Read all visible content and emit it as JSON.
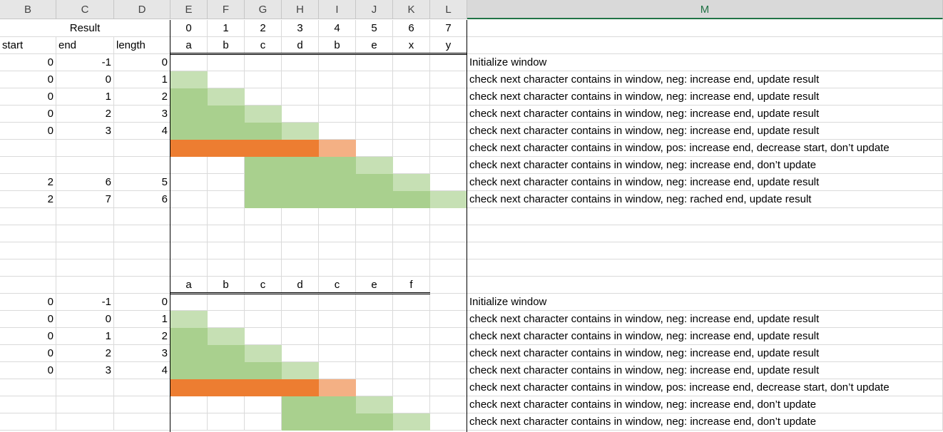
{
  "columns": [
    "B",
    "C",
    "D",
    "E",
    "F",
    "G",
    "H",
    "I",
    "J",
    "K",
    "L",
    "M"
  ],
  "selected_column": "M",
  "result_label": "Result",
  "index_row": [
    "0",
    "1",
    "2",
    "3",
    "4",
    "5",
    "6",
    "7"
  ],
  "row_labels": {
    "start": "start",
    "end": "end",
    "length": "length"
  },
  "string1": [
    "a",
    "b",
    "c",
    "d",
    "b",
    "e",
    "x",
    "y"
  ],
  "table1": [
    {
      "start": "0",
      "end": "-1",
      "length": "0",
      "note": "Initialize window",
      "fills": []
    },
    {
      "start": "0",
      "end": "0",
      "length": "1",
      "note": "check next character contains in window, neg: increase end, update result",
      "fills": [
        "L",
        "",
        "",
        "",
        "",
        "",
        "",
        ""
      ]
    },
    {
      "start": "0",
      "end": "1",
      "length": "2",
      "note": "check next character contains in window, neg: increase end, update result",
      "fills": [
        "G",
        "L",
        "",
        "",
        "",
        "",
        "",
        ""
      ]
    },
    {
      "start": "0",
      "end": "2",
      "length": "3",
      "note": "check next character contains in window, neg: increase end, update result",
      "fills": [
        "G",
        "G",
        "L",
        "",
        "",
        "",
        "",
        ""
      ]
    },
    {
      "start": "0",
      "end": "3",
      "length": "4",
      "note": "check next character contains in window, neg: increase end, update result",
      "fills": [
        "G",
        "G",
        "G",
        "L",
        "",
        "",
        "",
        ""
      ]
    },
    {
      "start": "",
      "end": "",
      "length": "",
      "note": "check next character contains in window, pos: increase end, decrease start, don’t update",
      "fills": [
        "O",
        "O",
        "O",
        "O",
        "P",
        "",
        "",
        ""
      ]
    },
    {
      "start": "",
      "end": "",
      "length": "",
      "note": "check next character contains in window, neg: increase end, don’t update",
      "fills": [
        "",
        "",
        "G",
        "G",
        "G",
        "L",
        "",
        ""
      ]
    },
    {
      "start": "2",
      "end": "6",
      "length": "5",
      "note": "check next character contains in window, neg: increase end, update result",
      "fills": [
        "",
        "",
        "G",
        "G",
        "G",
        "G",
        "L",
        ""
      ]
    },
    {
      "start": "2",
      "end": "7",
      "length": "6",
      "note": "check next character contains in window, neg: rached end, update result",
      "fills": [
        "",
        "",
        "G",
        "G",
        "G",
        "G",
        "G",
        "L"
      ]
    }
  ],
  "string2": [
    "a",
    "b",
    "c",
    "d",
    "c",
    "e",
    "f"
  ],
  "table2": [
    {
      "start": "0",
      "end": "-1",
      "length": "0",
      "note": "Initialize window",
      "fills": []
    },
    {
      "start": "0",
      "end": "0",
      "length": "1",
      "note": "check next character contains in window, neg: increase end, update result",
      "fills": [
        "L",
        "",
        "",
        "",
        "",
        "",
        "",
        ""
      ]
    },
    {
      "start": "0",
      "end": "1",
      "length": "2",
      "note": "check next character contains in window, neg: increase end, update result",
      "fills": [
        "G",
        "L",
        "",
        "",
        "",
        "",
        "",
        ""
      ]
    },
    {
      "start": "0",
      "end": "2",
      "length": "3",
      "note": "check next character contains in window, neg: increase end, update result",
      "fills": [
        "G",
        "G",
        "L",
        "",
        "",
        "",
        "",
        ""
      ]
    },
    {
      "start": "0",
      "end": "3",
      "length": "4",
      "note": "check next character contains in window, neg: increase end, update result",
      "fills": [
        "G",
        "G",
        "G",
        "L",
        "",
        "",
        "",
        ""
      ]
    },
    {
      "start": "",
      "end": "",
      "length": "",
      "note": "check next character contains in window, pos: increase end, decrease start, don’t update",
      "fills": [
        "O",
        "O",
        "O",
        "O",
        "P",
        "",
        "",
        ""
      ]
    },
    {
      "start": "",
      "end": "",
      "length": "",
      "note": "check next character contains in window, neg: increase end, don’t update",
      "fills": [
        "",
        "",
        "",
        "G",
        "G",
        "L",
        "",
        ""
      ]
    },
    {
      "start": "",
      "end": "",
      "length": "",
      "note": "check next character contains in window, neg: increase end, don’t update",
      "fills": [
        "",
        "",
        "",
        "G",
        "G",
        "G",
        "L",
        ""
      ]
    }
  ],
  "colors": {
    "L": "#c6e0b4",
    "G": "#a9d08e",
    "O": "#ed7d31",
    "P": "#f4b084",
    "header_bg": "#e6e6e6",
    "selected_header": "#217346"
  }
}
